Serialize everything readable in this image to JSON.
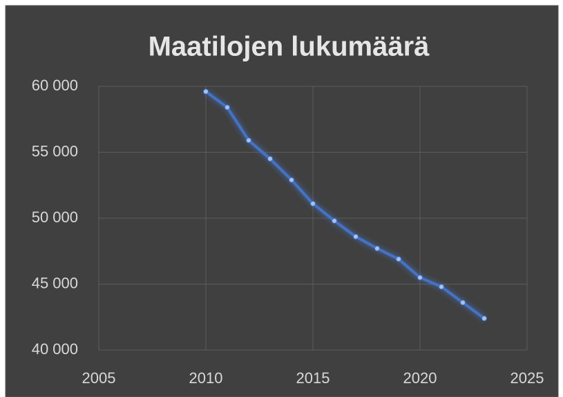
{
  "chart_data": {
    "type": "line",
    "title": "Maatilojen lukumäärä",
    "x": [
      2010,
      2011,
      2012,
      2013,
      2014,
      2015,
      2016,
      2017,
      2018,
      2019,
      2020,
      2021,
      2022,
      2023
    ],
    "series": [
      {
        "color": "#4472c4",
        "values": [
          59600,
          58400,
          55900,
          54500,
          52900,
          51100,
          49800,
          48600,
          47700,
          46900,
          45500,
          44800,
          43600,
          42400
        ]
      }
    ],
    "xlim": [
      2005,
      2025
    ],
    "xticks": [
      2005,
      2010,
      2015,
      2020,
      2025
    ],
    "ylim": [
      40000,
      60000
    ],
    "yticks": [
      {
        "value": 40000,
        "label": "40 000"
      },
      {
        "value": 45000,
        "label": "45 000"
      },
      {
        "value": 50000,
        "label": "50 000"
      },
      {
        "value": 55000,
        "label": "55 000"
      },
      {
        "value": 60000,
        "label": "60 000"
      }
    ],
    "grid": true
  }
}
